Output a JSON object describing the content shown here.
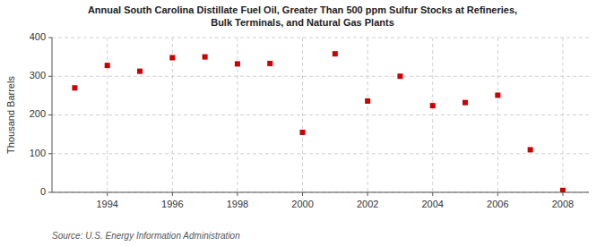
{
  "chart_data": {
    "type": "scatter",
    "title": "Annual South Carolina Distillate Fuel Oil, Greater Than 500 ppm Sulfur Stocks at Refineries,\nBulk Terminals, and Natural Gas Plants",
    "ylabel": "Thousand Barrels",
    "source": "Source: U.S. Energy Information Administration",
    "x": [
      1993,
      1994,
      1995,
      1996,
      1997,
      1998,
      1999,
      2000,
      2001,
      2002,
      2003,
      2004,
      2005,
      2006,
      2007,
      2008
    ],
    "values": [
      270,
      328,
      313,
      348,
      350,
      332,
      333,
      155,
      358,
      236,
      300,
      224,
      232,
      251,
      110,
      5
    ],
    "color": "#cc0000",
    "marker": "square",
    "xlim": [
      1992.3,
      2008.8
    ],
    "xticks": [
      1994,
      1996,
      1998,
      2000,
      2002,
      2004,
      2006,
      2008
    ],
    "ylim": [
      0,
      400
    ],
    "yticks": [
      0,
      100,
      200,
      300,
      400
    ],
    "grid": true
  }
}
